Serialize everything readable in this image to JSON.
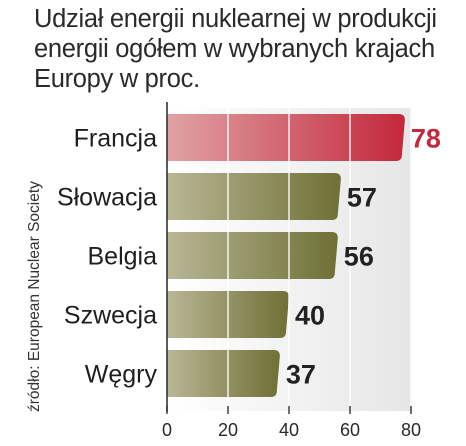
{
  "chart_data": {
    "type": "bar",
    "orientation": "horizontal",
    "title": "Udział energii nuklearnej w produkcji energii ogółem w wybranych krajach Europy w proc.",
    "source": "źródło: European Nuclear Society",
    "categories": [
      "Francja",
      "Słowacja",
      "Belgia",
      "Szwecja",
      "Węgry"
    ],
    "values": [
      78,
      57,
      56,
      40,
      37
    ],
    "value_labels": [
      "78",
      "57",
      "56",
      "40",
      "37"
    ],
    "xlim": [
      0,
      80
    ],
    "xticks": [
      "0",
      "20",
      "40",
      "60",
      "80"
    ],
    "xlabel": "",
    "ylabel": "",
    "grid": true,
    "colors": {
      "highlight_bar_light": "#e0a3a5",
      "highlight_bar_dark": "#c3283c",
      "bar_light": "#b9b796",
      "bar_dark": "#6e7035",
      "highlight_value": "#c3283c",
      "value": "#222222",
      "background_band": "#ebebeb",
      "axis": "#333333"
    }
  }
}
